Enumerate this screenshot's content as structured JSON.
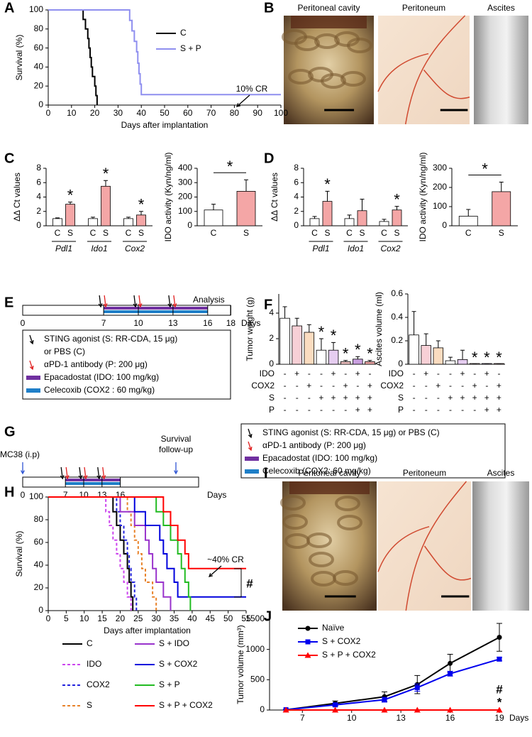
{
  "panel_labels": [
    "A",
    "B",
    "C",
    "D",
    "E",
    "F",
    "G",
    "H",
    "I",
    "J"
  ],
  "photos_B": [
    "Peritoneal cavity",
    "Peritoneum",
    "Ascites"
  ],
  "photos_I": [
    "Peritoneal cavity",
    "Peritoneum",
    "Ascites"
  ],
  "schedule_E": {
    "days": [
      0,
      7,
      10,
      13,
      16,
      18
    ],
    "unit": "Days",
    "note": "Analysis",
    "injections": [
      7,
      10,
      13
    ],
    "treatment": [
      7,
      16
    ],
    "legend": [
      {
        "lines": [
          "STING agonist (S: RR-CDA, 15 μg)",
          "or PBS (C)"
        ],
        "color": "#000000",
        "symbol": "arrow"
      },
      {
        "lines": [
          "αPD-1 antibody (P: 200 μg)"
        ],
        "color": "#e02020",
        "symbol": "arrow"
      },
      {
        "lines": [
          "Epacadostat (IDO: 100 mg/kg)"
        ],
        "color": "#7030a0",
        "symbol": "bar"
      },
      {
        "lines": [
          "Celecoxib (COX2 : 60 mg/kg)"
        ],
        "color": "#1f7fc8",
        "symbol": "bar"
      }
    ]
  },
  "schedule_G": {
    "days": [
      0,
      7,
      10,
      13,
      16
    ],
    "unit": "Days",
    "tumor": "MC38 (i.p)",
    "follow_up": [
      "Survival",
      "follow-up"
    ],
    "arrow_color": "#2f55d4",
    "injections": [
      7,
      10,
      13
    ],
    "treatment": [
      7,
      16
    ],
    "legend": [
      {
        "lines": [
          "STING agonist (S: RR-CDA, 15 μg) or PBS (C)"
        ],
        "color": "#000000",
        "symbol": "arrow"
      },
      {
        "lines": [
          "αPD-1 antibody (P: 200 μg)"
        ],
        "color": "#e02020",
        "symbol": "arrow"
      },
      {
        "lines": [
          "Epacadostat (IDO: 100 mg/kg)"
        ],
        "color": "#7030a0",
        "symbol": "bar"
      },
      {
        "lines": [
          "Celecoxib (COX2: 60 mg/kg)"
        ],
        "color": "#1f7fc8",
        "symbol": "bar"
      }
    ]
  },
  "chart_data": [
    {
      "type": "line",
      "step": true,
      "xlabel": "Days after implantation",
      "ylabel": "Survival (%)",
      "xlim": [
        0,
        100
      ],
      "xticks": [
        0,
        10,
        20,
        30,
        40,
        50,
        60,
        70,
        80,
        90,
        100
      ],
      "ylim": [
        0,
        100
      ],
      "yticks": [
        0,
        20,
        40,
        60,
        80,
        100
      ],
      "legend": "center",
      "series": [
        {
          "name": "C",
          "color": "#000000",
          "x": [
            0,
            15,
            16,
            17,
            17.5,
            18,
            18.5,
            19,
            20,
            20.5,
            21
          ],
          "values": [
            100,
            90,
            80,
            70,
            60,
            50,
            40,
            30,
            20,
            10,
            0
          ]
        },
        {
          "name": "S + P",
          "color": "#8f8fef",
          "x": [
            0,
            35,
            36,
            37,
            38,
            38.5,
            39,
            39.5,
            40,
            100
          ],
          "values": [
            100,
            89,
            78,
            67,
            56,
            44,
            33,
            22,
            11,
            11
          ]
        }
      ],
      "annotations": [
        {
          "text": "10% CR"
        }
      ]
    },
    {
      "type": "bar",
      "ylabel": "ΔΔ Ct values",
      "ylim": [
        0,
        8
      ],
      "yticks": [
        0,
        2,
        4,
        6,
        8
      ],
      "categories": [
        "C",
        "S",
        "C",
        "S",
        "C",
        "S"
      ],
      "groups": [
        "Pdl1",
        "Ido1",
        "Cox2"
      ],
      "values": [
        1.0,
        3.0,
        1.0,
        5.5,
        1.0,
        1.5
      ],
      "errors": [
        0.1,
        0.3,
        0.2,
        0.8,
        0.2,
        0.5
      ],
      "colors": [
        "#ffffff",
        "#f4a6a6",
        "#ffffff",
        "#f4a6a6",
        "#ffffff",
        "#f4a6a6"
      ],
      "annotations": [
        {
          "index": 1,
          "text": "*"
        },
        {
          "index": 3,
          "text": "*"
        },
        {
          "index": 5,
          "text": "*"
        }
      ]
    },
    {
      "type": "bar",
      "ylabel": "IDO activity (Kyn/ng/ml)",
      "ylim": [
        0,
        400
      ],
      "yticks": [
        0,
        100,
        200,
        300,
        400
      ],
      "categories": [
        "C",
        "S"
      ],
      "values": [
        110,
        240
      ],
      "errors": [
        40,
        80
      ],
      "colors": [
        "#ffffff",
        "#f4a6a6"
      ],
      "bracket": {
        "text": "*"
      }
    },
    {
      "type": "bar",
      "ylabel": "ΔΔ Ct values",
      "ylim": [
        0,
        8
      ],
      "yticks": [
        0,
        2,
        4,
        6,
        8
      ],
      "categories": [
        "C",
        "S",
        "C",
        "S",
        "C",
        "S"
      ],
      "groups": [
        "Pdl1",
        "Ido1",
        "Cox2"
      ],
      "values": [
        1.0,
        3.4,
        1.0,
        2.1,
        0.6,
        2.2
      ],
      "errors": [
        0.3,
        1.4,
        0.5,
        1.6,
        0.3,
        0.5
      ],
      "colors": [
        "#ffffff",
        "#f4a6a6",
        "#ffffff",
        "#f4a6a6",
        "#ffffff",
        "#f4a6a6"
      ],
      "annotations": [
        {
          "index": 1,
          "text": "*"
        },
        {
          "index": 5,
          "text": "*"
        }
      ]
    },
    {
      "type": "bar",
      "ylabel": "IDO activity (Kyn/ng/ml)",
      "ylim": [
        0,
        300
      ],
      "yticks": [
        0,
        100,
        200,
        300
      ],
      "categories": [
        "C",
        "S"
      ],
      "values": [
        50,
        178
      ],
      "errors": [
        35,
        50
      ],
      "colors": [
        "#ffffff",
        "#f4a6a6"
      ],
      "bracket": {
        "text": "*"
      }
    },
    {
      "type": "bar",
      "ylabel": "Tumor weight (g)",
      "ylim": [
        0,
        5.5
      ],
      "yticks": [
        0,
        2,
        4
      ],
      "values": [
        3.6,
        3.0,
        2.5,
        1.1,
        1.1,
        0.2,
        0.4,
        0.2
      ],
      "errors": [
        0.9,
        0.6,
        0.6,
        0.9,
        0.6,
        0.1,
        0.2,
        0.1
      ],
      "colors": [
        "#ffffff",
        "#f7d0d6",
        "#fbdcc0",
        "#ffffff",
        "#e6cdf0",
        "#f5c6c6",
        "#c9a0e0",
        "#f0a8a8"
      ],
      "annotations": [
        {
          "index": 3,
          "text": "*"
        },
        {
          "index": 4,
          "text": "*"
        },
        {
          "index": 5,
          "text": "*"
        },
        {
          "index": 6,
          "text": "*"
        },
        {
          "index": 7,
          "text": "*"
        }
      ],
      "conditions": [
        {
          "label": "IDO",
          "marks": [
            "-",
            "+",
            "-",
            "-",
            "+",
            "-",
            "+",
            "-"
          ]
        },
        {
          "label": "COX2",
          "marks": [
            "-",
            "-",
            "+",
            "-",
            "-",
            "+",
            "-",
            "+"
          ]
        },
        {
          "label": "S",
          "marks": [
            "-",
            "-",
            "-",
            "+",
            "+",
            "+",
            "+",
            "+"
          ]
        },
        {
          "label": "P",
          "marks": [
            "-",
            "-",
            "-",
            "-",
            "-",
            "-",
            "+",
            "+"
          ]
        }
      ]
    },
    {
      "type": "bar",
      "ylabel": "Ascites volume (ml)",
      "ylim": [
        0,
        0.6
      ],
      "yticks": [
        0,
        0.2,
        0.4,
        0.6
      ],
      "values": [
        0.25,
        0.16,
        0.14,
        0.03,
        0.04,
        0,
        0,
        0
      ],
      "errors": [
        0.2,
        0.1,
        0.06,
        0.03,
        0.08,
        0,
        0,
        0
      ],
      "colors": [
        "#ffffff",
        "#f7d0d6",
        "#fbdcc0",
        "#ffffff",
        "#e6cdf0",
        "#f5c6c6",
        "#c9a0e0",
        "#f0a8a8"
      ],
      "annotations": [
        {
          "index": 5,
          "text": "*"
        },
        {
          "index": 6,
          "text": "*"
        },
        {
          "index": 7,
          "text": "*"
        }
      ],
      "conditions": [
        {
          "label": "IDO",
          "marks": [
            "-",
            "+",
            "-",
            "-",
            "+",
            "-",
            "+",
            "-"
          ]
        },
        {
          "label": "COX2",
          "marks": [
            "-",
            "-",
            "+",
            "-",
            "-",
            "+",
            "-",
            "+"
          ]
        },
        {
          "label": "S",
          "marks": [
            "-",
            "-",
            "-",
            "+",
            "+",
            "+",
            "+",
            "+"
          ]
        },
        {
          "label": "P",
          "marks": [
            "-",
            "-",
            "-",
            "-",
            "-",
            "-",
            "+",
            "+"
          ]
        }
      ]
    },
    {
      "type": "line",
      "step": true,
      "xlabel": "Days after implantation",
      "ylabel": "Survival (%)",
      "xlim": [
        0,
        55
      ],
      "xticks": [
        0,
        5,
        10,
        15,
        20,
        25,
        30,
        35,
        40,
        45,
        50,
        55
      ],
      "ylim": [
        0,
        100
      ],
      "yticks": [
        0,
        20,
        40,
        60,
        80,
        100
      ],
      "legend": "below",
      "series": [
        {
          "name": "C",
          "color": "#000000",
          "x": [
            0,
            18,
            19,
            20,
            21,
            22,
            22.5,
            23,
            23.5
          ],
          "values": [
            100,
            87,
            75,
            62,
            50,
            37,
            25,
            12,
            0
          ]
        },
        {
          "name": "IDO",
          "color": "#cc44ee",
          "dash": true,
          "x": [
            0,
            16,
            17,
            18,
            19,
            20,
            21,
            22,
            23
          ],
          "values": [
            100,
            87,
            75,
            62,
            50,
            37,
            25,
            12,
            0
          ]
        },
        {
          "name": "COX2",
          "color": "#2222dd",
          "dash": true,
          "x": [
            0,
            19,
            20,
            21,
            22,
            22.5,
            23,
            24,
            24.5
          ],
          "values": [
            100,
            87,
            75,
            62,
            50,
            37,
            25,
            12,
            0
          ]
        },
        {
          "name": "S",
          "color": "#e8822a",
          "dash": true,
          "x": [
            0,
            22,
            23,
            24,
            25,
            26,
            27,
            29,
            30
          ],
          "values": [
            100,
            87,
            75,
            62,
            50,
            37,
            25,
            12,
            0
          ]
        },
        {
          "name": "S + IDO",
          "color": "#9933cc",
          "x": [
            0,
            20,
            24,
            27,
            28,
            29,
            30,
            32,
            34
          ],
          "values": [
            100,
            87,
            75,
            62,
            50,
            37,
            25,
            12,
            0
          ]
        },
        {
          "name": "S + COX2",
          "color": "#0000dd",
          "x": [
            0,
            24,
            27,
            31,
            32,
            33,
            35,
            36,
            55
          ],
          "values": [
            100,
            87,
            75,
            62,
            50,
            37,
            25,
            12,
            12
          ]
        },
        {
          "name": "S + P",
          "color": "#22bb22",
          "x": [
            0,
            30,
            32,
            34,
            36,
            37,
            38,
            39,
            39.5
          ],
          "values": [
            100,
            87,
            75,
            62,
            50,
            37,
            25,
            12,
            0
          ]
        },
        {
          "name": "S + P + COX2",
          "color": "#ff0000",
          "x": [
            0,
            32,
            34,
            36,
            38,
            39,
            55
          ],
          "values": [
            100,
            87,
            75,
            62,
            50,
            37,
            37
          ]
        }
      ],
      "annotations": [
        {
          "text": "~40% CR"
        },
        {
          "text": "#"
        }
      ]
    },
    {
      "type": "line",
      "step": false,
      "xlabel": "Days",
      "ylabel": "Tumor volume (mm³)",
      "xlim": [
        5,
        19
      ],
      "xticks": [
        7,
        10,
        13,
        16,
        19
      ],
      "ylim": [
        0,
        1500
      ],
      "yticks": [
        0,
        500,
        1000,
        1500
      ],
      "legend": "upper left",
      "series": [
        {
          "name": "Naïve",
          "color": "#000000",
          "marker": "circle",
          "x": [
            6,
            9,
            12,
            14,
            16,
            19
          ],
          "values": [
            5,
            110,
            220,
            420,
            770,
            1200
          ],
          "errors": [
            5,
            40,
            80,
            150,
            150,
            230
          ]
        },
        {
          "name": "S + COX2",
          "color": "#0000ee",
          "marker": "square",
          "x": [
            6,
            9,
            12,
            14,
            16,
            19
          ],
          "values": [
            5,
            85,
            170,
            370,
            600,
            840
          ],
          "errors": [
            3,
            25,
            40,
            60,
            40,
            30
          ]
        },
        {
          "name": "S + P + COX2",
          "color": "#ff0000",
          "marker": "triangle",
          "x": [
            6,
            9,
            12,
            14,
            16,
            19
          ],
          "values": [
            0,
            0,
            0,
            0,
            0,
            0
          ]
        }
      ],
      "annotations": [
        {
          "text": "#"
        },
        {
          "text": "*"
        }
      ]
    }
  ]
}
